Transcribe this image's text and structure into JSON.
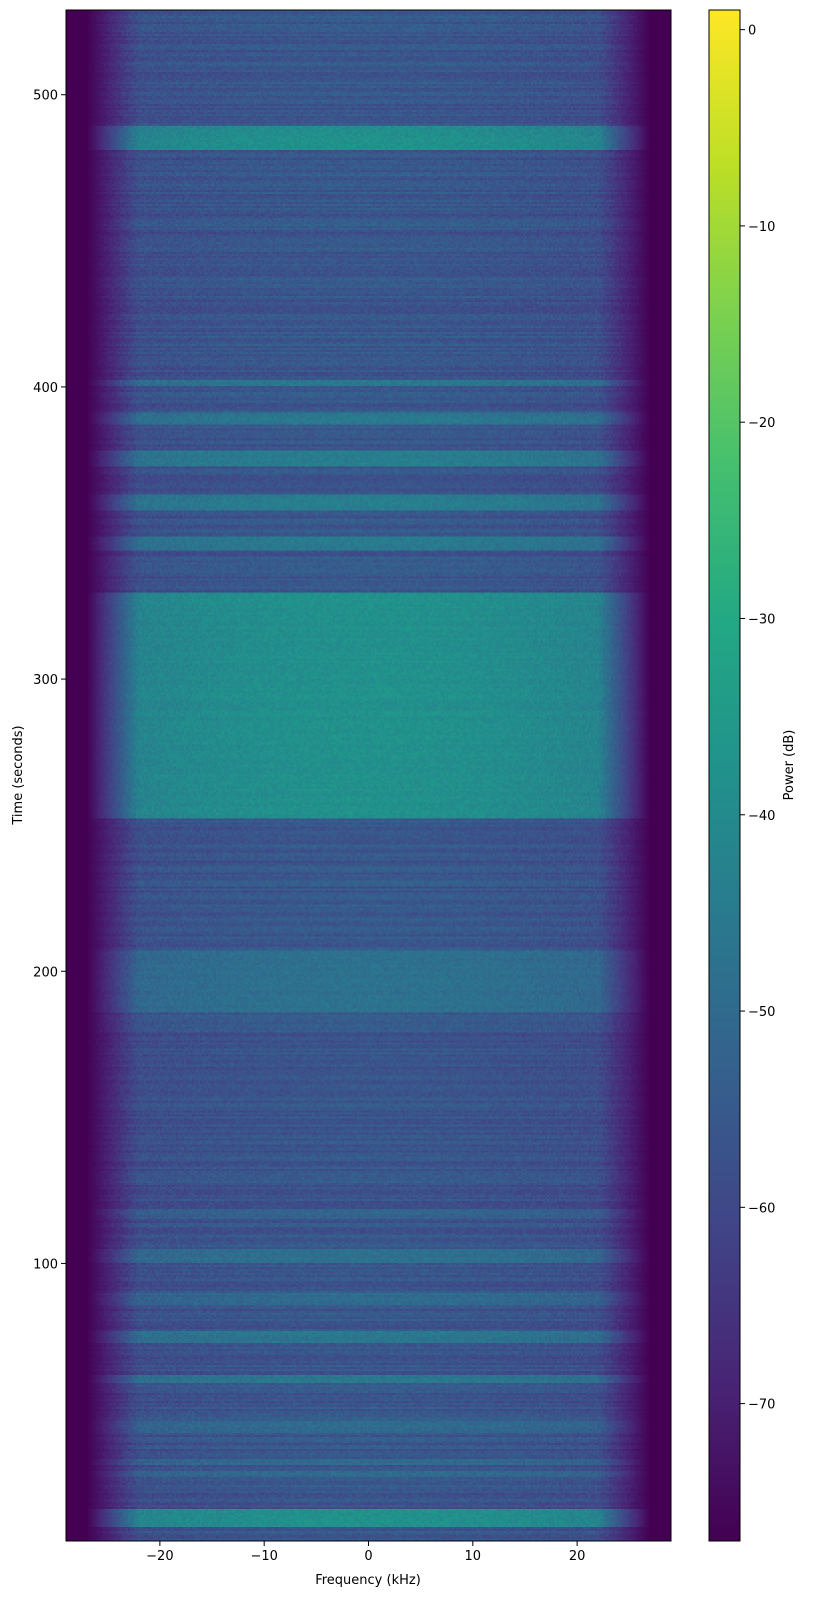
{
  "chart_data": {
    "type": "heatmap",
    "title": "",
    "xlabel": "Frequency (kHz)",
    "ylabel": "Time (seconds)",
    "xlim": [
      -29,
      29
    ],
    "ylim": [
      5,
      529
    ],
    "xticks": [
      -20,
      -10,
      0,
      10,
      20
    ],
    "yticks": [
      100,
      200,
      300,
      400,
      500
    ],
    "colorbar": {
      "label": "Power (dB)",
      "range": [
        -77,
        1
      ],
      "ticks": [
        0,
        -10,
        -20,
        -30,
        -40,
        -50,
        -60,
        -70
      ],
      "colormap": "viridis"
    },
    "profile_note_free": true,
    "passband_edge_khz": 26,
    "floor_db": -77,
    "bright_bands": [
      {
        "t_start": 10,
        "t_end": 16,
        "level_db": -38
      },
      {
        "t_start": 27,
        "t_end": 29,
        "level_db": -50
      },
      {
        "t_start": 31,
        "t_end": 33,
        "level_db": -50
      },
      {
        "t_start": 42,
        "t_end": 46,
        "level_db": -50
      },
      {
        "t_start": 59,
        "t_end": 62,
        "level_db": -46
      },
      {
        "t_start": 73,
        "t_end": 77,
        "level_db": -46
      },
      {
        "t_start": 86,
        "t_end": 90,
        "level_db": -50
      },
      {
        "t_start": 100,
        "t_end": 105,
        "level_db": -48
      },
      {
        "t_start": 115,
        "t_end": 119,
        "level_db": -52
      },
      {
        "t_start": 186,
        "t_end": 207,
        "level_db": -48
      },
      {
        "t_start": 252,
        "t_end": 330,
        "level_db": -38
      },
      {
        "t_start": 344,
        "t_end": 349,
        "level_db": -45
      },
      {
        "t_start": 358,
        "t_end": 363,
        "level_db": -44
      },
      {
        "t_start": 373,
        "t_end": 378,
        "level_db": -44
      },
      {
        "t_start": 387,
        "t_end": 391,
        "level_db": -46
      },
      {
        "t_start": 400,
        "t_end": 402,
        "level_db": -46
      },
      {
        "t_start": 481,
        "t_end": 489,
        "level_db": -38
      }
    ],
    "baseline_db": -56
  },
  "colors": {
    "viridis_low": "#440154",
    "viridis_mid": "#21918c",
    "viridis_high": "#fde725"
  }
}
